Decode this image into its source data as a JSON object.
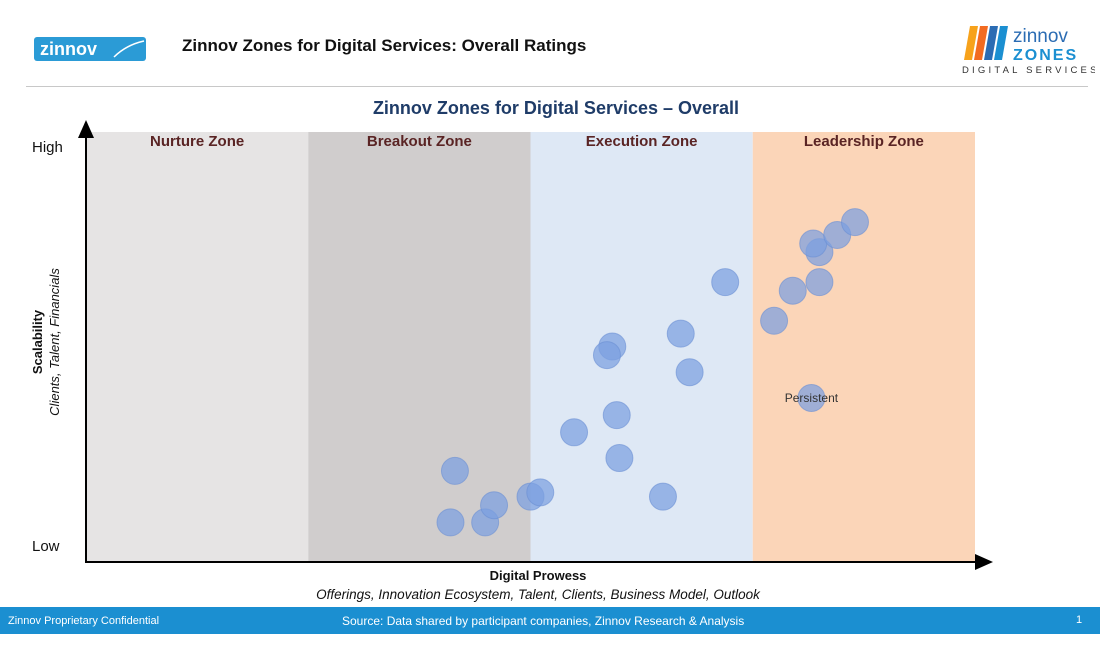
{
  "header": {
    "title": "Zinnov Zones for Digital Services: Overall Ratings",
    "logo_left": "zinnov",
    "logo_right": {
      "word1": "zinnov",
      "word2": "ZONES",
      "word3": "DIGITAL SERVICES"
    }
  },
  "chart_data": {
    "type": "scatter",
    "title": "Zinnov Zones for Digital Services – Overall",
    "xlabel": "Digital Prowess",
    "xlabel_sub": "Offerings, Innovation Ecosystem, Talent, Clients, Business Model, Outlook",
    "ylabel": "Scalability",
    "ylabel_sub": "Clients, Talent, Financials",
    "y_high_label": "High",
    "y_low_label": "Low",
    "xlim": [
      0,
      100
    ],
    "ylim": [
      0,
      100
    ],
    "zones": [
      {
        "name": "Nurture Zone",
        "from": 0,
        "to": 25,
        "color": "#e6e4e4"
      },
      {
        "name": "Breakout Zone",
        "from": 25,
        "to": 50,
        "color": "#d0cdcd"
      },
      {
        "name": "Execution Zone",
        "from": 50,
        "to": 75,
        "color": "#dee8f5"
      },
      {
        "name": "Leadership Zone",
        "from": 75,
        "to": 100,
        "color": "#fbd5b8"
      }
    ],
    "points": [
      {
        "x": 41.5,
        "y": 21
      },
      {
        "x": 41.0,
        "y": 9
      },
      {
        "x": 44.9,
        "y": 9
      },
      {
        "x": 45.9,
        "y": 13
      },
      {
        "x": 50.0,
        "y": 15
      },
      {
        "x": 51.1,
        "y": 16
      },
      {
        "x": 54.9,
        "y": 30
      },
      {
        "x": 60.0,
        "y": 24
      },
      {
        "x": 59.7,
        "y": 34
      },
      {
        "x": 59.2,
        "y": 50
      },
      {
        "x": 58.6,
        "y": 48
      },
      {
        "x": 64.9,
        "y": 15
      },
      {
        "x": 66.9,
        "y": 53
      },
      {
        "x": 67.9,
        "y": 44
      },
      {
        "x": 71.9,
        "y": 65
      },
      {
        "x": 77.4,
        "y": 56
      },
      {
        "x": 79.5,
        "y": 63
      },
      {
        "x": 82.5,
        "y": 65
      },
      {
        "x": 81.6,
        "y": 38,
        "label": "Persistent"
      },
      {
        "x": 82.5,
        "y": 72
      },
      {
        "x": 81.8,
        "y": 74
      },
      {
        "x": 84.5,
        "y": 76
      },
      {
        "x": 86.5,
        "y": 79
      }
    ],
    "point_color": "#7b9fe0"
  },
  "footer": {
    "left": "Zinnov Proprietary Confidential",
    "source": "Source: Data shared by participant companies, Zinnov Research & Analysis",
    "page": "1"
  }
}
